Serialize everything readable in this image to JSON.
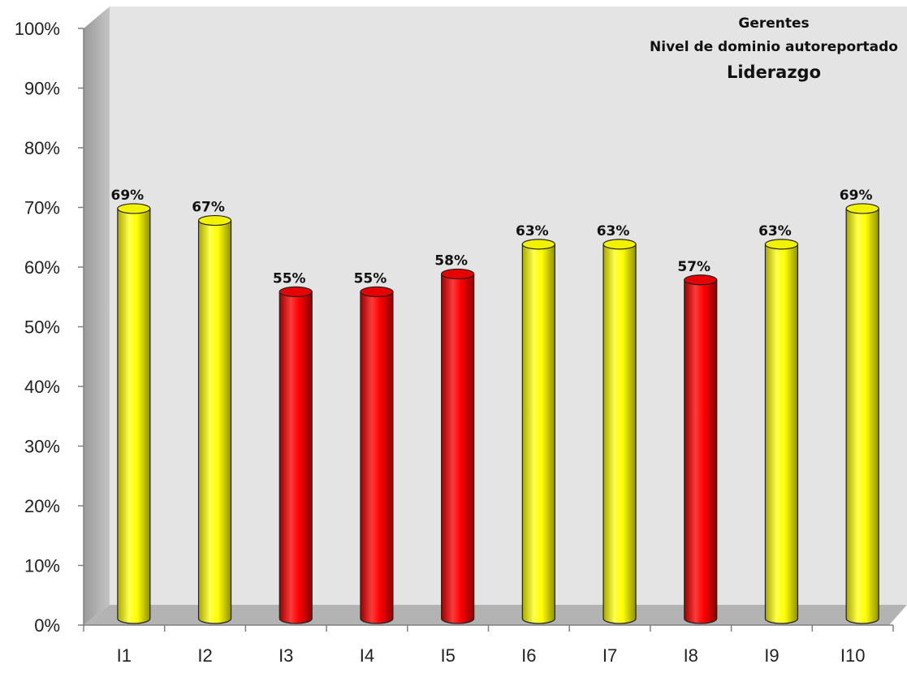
{
  "chart_data": {
    "type": "bar",
    "title": [
      "Gerentes",
      "Nivel de dominio autoreportado",
      "Liderazgo"
    ],
    "categories": [
      "I1",
      "I2",
      "I3",
      "I4",
      "I5",
      "I6",
      "I7",
      "I8",
      "I9",
      "I10"
    ],
    "values": [
      69,
      67,
      55,
      55,
      58,
      63,
      63,
      57,
      63,
      69
    ],
    "data_labels": [
      "69%",
      "67%",
      "55%",
      "55%",
      "58%",
      "63%",
      "63%",
      "57%",
      "63%",
      "69%"
    ],
    "bar_colors": [
      "#ffff00",
      "#ffff00",
      "#ff0000",
      "#ff0000",
      "#ff0000",
      "#ffff00",
      "#ffff00",
      "#ff0000",
      "#ffff00",
      "#ffff00"
    ],
    "y_ticks": [
      "0%",
      "10%",
      "20%",
      "30%",
      "40%",
      "50%",
      "60%",
      "70%",
      "80%",
      "90%",
      "100%"
    ],
    "ylim": [
      0,
      100
    ],
    "grid": false,
    "legend": "none",
    "style": "3d-cylinder"
  }
}
